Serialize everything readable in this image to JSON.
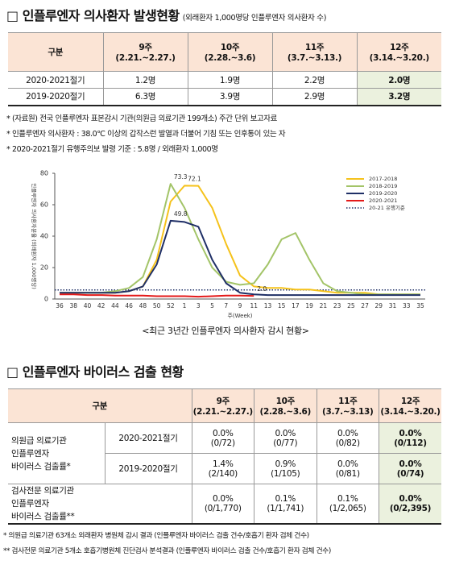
{
  "section1": {
    "title": "□ 인플루엔자 의사환자 발생현황",
    "subtitle": "(외래환자 1,000명당 인플루엔자 의사환자 수)"
  },
  "table1": {
    "header": [
      [
        "구분"
      ],
      [
        "9주",
        "(2.21.~2.27.)"
      ],
      [
        "10주",
        "(2.28.~3.6)"
      ],
      [
        "11주",
        "(3.7.~3.13.)"
      ],
      [
        "12주",
        "(3.14.~3.20.)"
      ]
    ],
    "rows": [
      [
        "2020-2021절기",
        "1.2명",
        "1.9명",
        "2.2명",
        "2.0명"
      ],
      [
        "2019-2020절기",
        "6.3명",
        "3.9명",
        "2.9명",
        "3.2명"
      ]
    ]
  },
  "notes": [
    "* (자료원) 전국 인플루엔자 표본감시 기관(의원급 의료기관 199개소) 주간 단위 보고자료",
    "* 인플루엔자 의사환자 : 38.0℃ 이상의 갑작스런 발열과 더불어 기침 또는 인후통이 있는 자",
    "* 2020-2021절기 유행주의보 발령 기준 : 5.8명 / 외래환자 1,000명"
  ],
  "chart_data": {
    "type": "line",
    "xlabel": "주(Week)",
    "ylabel": "인플루엔자 의사환자분율 (외래환자 1,000명당)",
    "categories": [
      "36",
      "38",
      "40",
      "42",
      "44",
      "46",
      "48",
      "50",
      "52",
      "1",
      "3",
      "5",
      "7",
      "9",
      "11",
      "13",
      "15",
      "17",
      "19",
      "21",
      "23",
      "25",
      "27",
      "29",
      "31",
      "33",
      "35"
    ],
    "series": [
      {
        "name": "2017-2018",
        "color": "#f5c21b",
        "values": [
          4,
          4,
          4,
          4,
          4,
          5,
          8,
          25,
          62,
          72.1,
          72,
          58,
          35,
          15,
          8,
          7,
          7,
          6,
          6,
          5,
          4,
          4,
          4,
          3,
          3,
          3,
          3
        ]
      },
      {
        "name": "2018-2019",
        "color": "#a3c468",
        "values": [
          4,
          4,
          4,
          4,
          5,
          7,
          14,
          38,
          73.3,
          58,
          38,
          20,
          11,
          9,
          10,
          22,
          38,
          42,
          25,
          10,
          5,
          4,
          3,
          3,
          3,
          3,
          3
        ]
      },
      {
        "name": "2019-2020",
        "color": "#1f2f66",
        "values": [
          4,
          4,
          4,
          4,
          4,
          5,
          8,
          22,
          49.8,
          49,
          46,
          25,
          10,
          4,
          3,
          2.5,
          2.5,
          2.5,
          2.5,
          2.5,
          2.5,
          2.5,
          2.5,
          2.5,
          2.5,
          2.5,
          2.5
        ]
      },
      {
        "name": "2020-2021",
        "color": "#e41a1a",
        "values": [
          3,
          3,
          2.5,
          2.5,
          2.2,
          2.2,
          2.2,
          1.8,
          1.8,
          1.8,
          1.5,
          1.8,
          2.2,
          2.2,
          2,
          null,
          null,
          null,
          null,
          null,
          null,
          null,
          null,
          null,
          null,
          null,
          null
        ]
      }
    ],
    "threshold": 5.8,
    "threshold_label": "20-21 유행기준",
    "threshold_color": "#1f2f66",
    "annotations": [
      "73.3",
      "72.1",
      "49.8",
      "2.0"
    ],
    "ylim": [
      0,
      80
    ],
    "yticks": [
      0,
      20,
      40,
      60,
      80
    ],
    "grid": false,
    "legend": "upper right"
  },
  "chart_caption": "<최근 3년간 인플루엔자 의사환자 감시 현황>",
  "section2": {
    "title": "□ 인플루엔자 바이러스 검출 현황"
  },
  "table2": {
    "header": {
      "label": "구분",
      "weeks": [
        [
          "9주",
          "(2.21.~2.27.)"
        ],
        [
          "10주",
          "(2.28.~3.6)"
        ],
        [
          "11주",
          "(3.7.~3.13)"
        ],
        [
          "12주",
          "(3.14.~3.20.)"
        ]
      ]
    },
    "groups": [
      {
        "label": [
          "의원급 의료기관",
          "인플루엔자",
          "바이러스 검출률*"
        ],
        "rows": [
          {
            "season": "2020-2021절기",
            "cells": [
              [
                "0.0%",
                "(0/72)"
              ],
              [
                "0.0%",
                "(0/77)"
              ],
              [
                "0.0%",
                "(0/82)"
              ],
              [
                "0.0%",
                "(0/112)"
              ]
            ]
          },
          {
            "season": "2019-2020절기",
            "cells": [
              [
                "1.4%",
                "(2/140)"
              ],
              [
                "0.9%",
                "(1/105)"
              ],
              [
                "0.0%",
                "(0/81)"
              ],
              [
                "0.0%",
                "(0/74)"
              ]
            ]
          }
        ]
      },
      {
        "label": [
          "검사전문 의료기관",
          "인플루엔자",
          "바이러스 검출률**"
        ],
        "cells": [
          [
            "0.0%",
            "(0/1,770)"
          ],
          [
            "0.1%",
            "(1/1,741)"
          ],
          [
            "0.1%",
            "(1/2,065)"
          ],
          [
            "0.0%",
            "(0/2,395)"
          ]
        ]
      }
    ]
  },
  "footnotes": [
    "* 의원급 의료기관 63개소 외래환자 병원체 감시 결과 (인플루엔자 바이러스 검출 건수/호흡기 환자 검체 건수)",
    "** 검사전문 의료기관 5개소 호흡기병원체 진단검사 분석결과 (인플루엔자 바이러스 검출 건수/호흡기 환자 검체 건수)"
  ]
}
